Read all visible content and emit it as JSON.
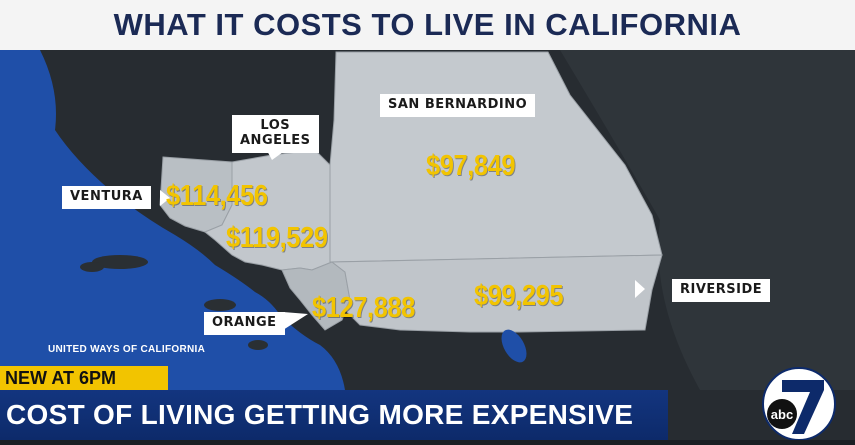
{
  "header": {
    "title": "WHAT IT COSTS TO LIVE IN CALIFORNIA"
  },
  "map": {
    "counties": [
      {
        "name": "LOS ANGELES",
        "line1": "LOS",
        "line2": "ANGELES",
        "cost": "$119,529"
      },
      {
        "name": "SAN BERNARDINO",
        "cost": "$97,849"
      },
      {
        "name": "VENTURA",
        "cost": "$114,456"
      },
      {
        "name": "ORANGE",
        "cost": "$127,888"
      },
      {
        "name": "RIVERSIDE",
        "cost": "$99,295"
      }
    ],
    "source": "UNITED WAYS OF CALIFORNIA",
    "colors": {
      "ocean": "#1f4fa8",
      "county_fill": "#b9bfc4",
      "land": "#2a2f33",
      "price": "#f2c400"
    }
  },
  "ticker": {
    "tag": "NEW AT 6PM",
    "headline": "COST OF LIVING GETTING MORE EXPENSIVE",
    "colors": {
      "tag_bg": "#f2c400",
      "headline_bg": "#13357f"
    }
  },
  "logo": {
    "channel": "7",
    "network": "abc"
  }
}
